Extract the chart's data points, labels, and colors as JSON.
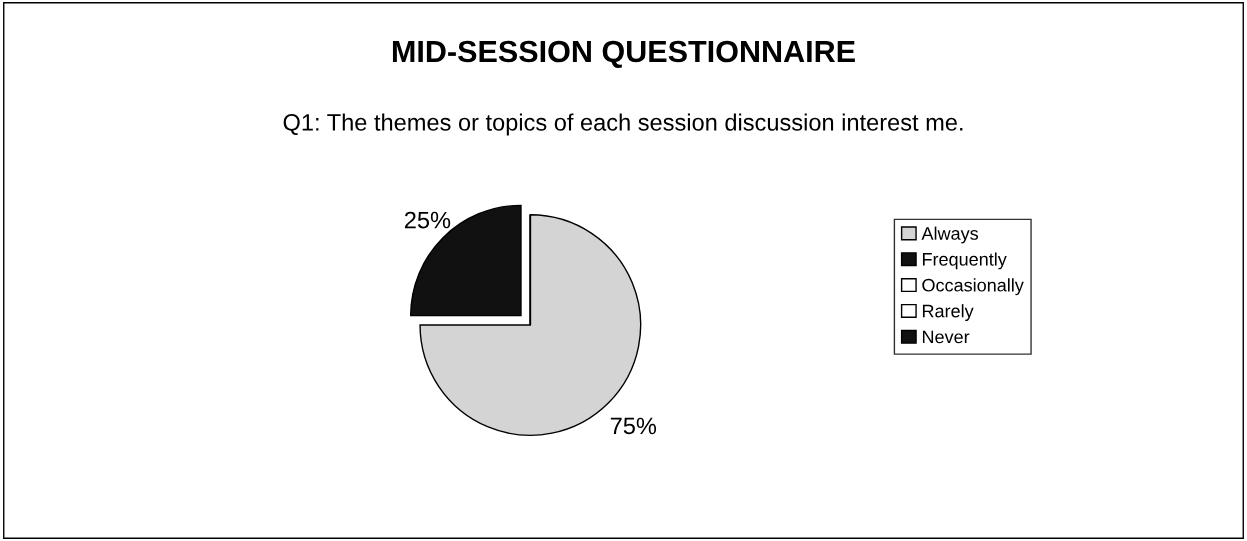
{
  "chart_data": {
    "type": "pie",
    "title": "MID-SESSION QUESTIONNAIRE",
    "subtitle": "Q1: The themes or topics of each session discussion interest me.",
    "categories": [
      "Always",
      "Frequently",
      "Occasionally",
      "Rarely",
      "Never"
    ],
    "values": [
      75,
      25,
      0,
      0,
      0
    ],
    "colors": [
      "#d4d4d4",
      "#111111",
      "#ffffff",
      "#ffffff",
      "#111111"
    ],
    "value_labels": [
      "75%",
      "25%",
      null,
      null,
      null
    ],
    "legend": "right"
  }
}
